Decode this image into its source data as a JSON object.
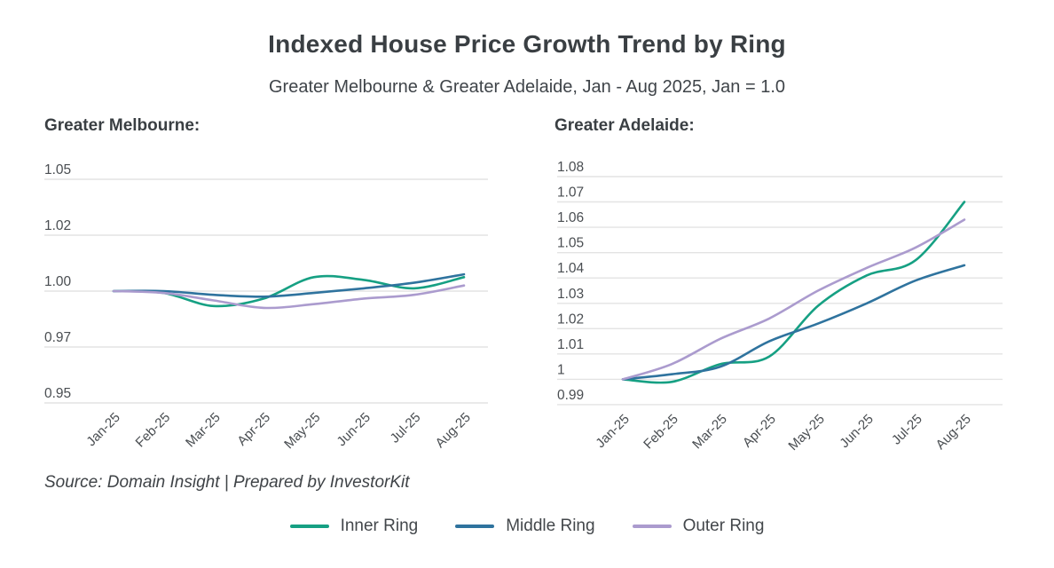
{
  "title": "Indexed House Price Growth Trend by Ring",
  "subtitle": "Greater Melbourne & Greater Adelaide, Jan - Aug 2025, Jan = 1.0",
  "footer": {
    "source_note": "Source: Domain Insight | Prepared by InvestorKit"
  },
  "colors": {
    "inner": "#16a083",
    "middle": "#2f739e",
    "outer": "#ab9bce",
    "grid": "#e3e3e3",
    "axis_text": "#4a4e52",
    "heading_text": "#3a3f43"
  },
  "legend": [
    {
      "label": "Inner Ring",
      "color_key": "inner"
    },
    {
      "label": "Middle Ring",
      "color_key": "middle"
    },
    {
      "label": "Outer Ring",
      "color_key": "outer"
    }
  ],
  "chart_data": [
    {
      "type": "line",
      "title": "Greater Melbourne:",
      "x": [
        "Jan-25",
        "Feb-25",
        "Mar-25",
        "Apr-25",
        "May-25",
        "Jun-25",
        "Jul-25",
        "Aug-25"
      ],
      "y_ticks": [
        "1.05",
        "1.02",
        "1.00",
        "0.97",
        "0.95"
      ],
      "y_tick_values": [
        1.05,
        1.02,
        1.0,
        0.97,
        0.95
      ],
      "ylim_note": "ticks rendered evenly spaced as in source",
      "grid": true,
      "legend_position": "bottom-shared",
      "series": [
        {
          "name": "Inner Ring",
          "color_key": "inner",
          "values": [
            1.0,
            0.999,
            0.992,
            0.996,
            1.005,
            1.004,
            1.001,
            1.005
          ]
        },
        {
          "name": "Middle Ring",
          "color_key": "middle",
          "values": [
            1.0,
            1.0,
            0.998,
            0.997,
            0.999,
            1.001,
            1.003,
            1.006
          ]
        },
        {
          "name": "Outer Ring",
          "color_key": "outer",
          "values": [
            1.0,
            0.999,
            0.995,
            0.991,
            0.993,
            0.996,
            0.998,
            1.002
          ]
        }
      ]
    },
    {
      "type": "line",
      "title": "Greater Adelaide:",
      "x": [
        "Jan-25",
        "Feb-25",
        "Mar-25",
        "Apr-25",
        "May-25",
        "Jun-25",
        "Jul-25",
        "Aug-25"
      ],
      "y_ticks": [
        "1.08",
        "1.07",
        "1.06",
        "1.05",
        "1.04",
        "1.03",
        "1.02",
        "1.01",
        "1",
        "0.99"
      ],
      "y_tick_values": [
        1.08,
        1.07,
        1.06,
        1.05,
        1.04,
        1.03,
        1.02,
        1.01,
        1.0,
        0.99
      ],
      "ylim_note": "linear axis, ticks evenly spaced",
      "grid": true,
      "legend_position": "bottom-shared",
      "series": [
        {
          "name": "Inner Ring",
          "color_key": "inner",
          "values": [
            1.0,
            0.999,
            1.006,
            1.009,
            1.029,
            1.041,
            1.047,
            1.07
          ]
        },
        {
          "name": "Middle Ring",
          "color_key": "middle",
          "values": [
            1.0,
            1.002,
            1.005,
            1.015,
            1.022,
            1.03,
            1.039,
            1.045
          ]
        },
        {
          "name": "Outer Ring",
          "color_key": "outer",
          "values": [
            1.0,
            1.006,
            1.016,
            1.024,
            1.035,
            1.044,
            1.052,
            1.063
          ]
        }
      ]
    }
  ]
}
